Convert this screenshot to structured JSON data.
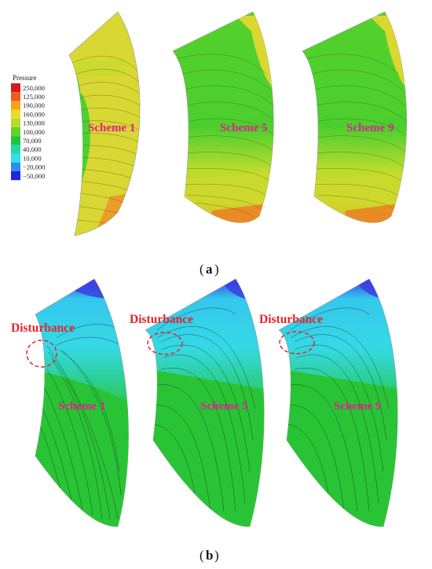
{
  "legend": {
    "title": "Pressure",
    "levels": [
      {
        "label": "250,000",
        "color": "#d7191c"
      },
      {
        "label": "125,000",
        "color": "#f05a23"
      },
      {
        "label": "190,000",
        "color": "#f6a316"
      },
      {
        "label": "160,000",
        "color": "#e9dc2a"
      },
      {
        "label": "130,000",
        "color": "#b6dd2b"
      },
      {
        "label": "100,000",
        "color": "#5fd42a"
      },
      {
        "label": "70,000",
        "color": "#1fc43a"
      },
      {
        "label": "40,000",
        "color": "#22d7a6"
      },
      {
        "label": "10,000",
        "color": "#2fe2e8"
      },
      {
        "label": "−20,000",
        "color": "#2a8ff0"
      },
      {
        "label": "−50,000",
        "color": "#2323e0"
      }
    ]
  },
  "panel_a": {
    "caption_open": "(",
    "caption_letter": "a",
    "caption_close": ")",
    "schemes": [
      "Scheme 1",
      "Scheme 5",
      "Scheme 9"
    ]
  },
  "panel_b": {
    "caption_open": "(",
    "caption_letter": "b",
    "caption_close": ")",
    "schemes": [
      "Scheme 1",
      "Scheme 5",
      "Scheme 9"
    ],
    "annotation": "Disturbance"
  }
}
